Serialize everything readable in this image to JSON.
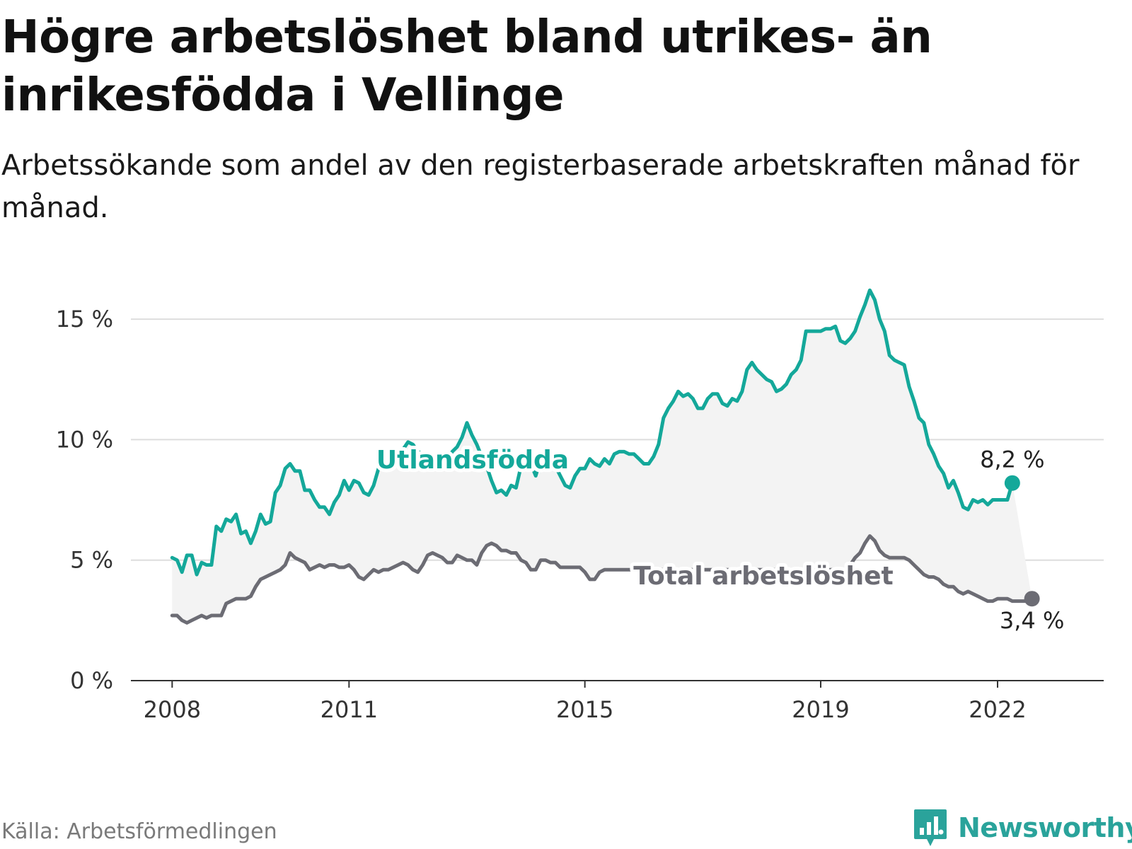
{
  "header": {
    "title": "Högre arbetslöshet bland utrikes- än inrikesfödda i Vellinge",
    "subtitle": "Arbetssökande som andel av den registerbaserade arbetskraften månad för månad."
  },
  "footer": {
    "source": "Källa: Arbetsförmedlingen",
    "brand": "Newsworthy"
  },
  "colors": {
    "utlandsfodda": "#14a89a",
    "total": "#6c6c74",
    "band": "#f3f3f3",
    "grid": "#dddddd",
    "axis": "#333333",
    "brand": "#2aa39b"
  },
  "chart_data": {
    "type": "line",
    "title": "Högre arbetslöshet bland utrikes- än inrikesfödda i Vellinge",
    "ylim": [
      0,
      16.5
    ],
    "xlim": [
      2007.3,
      2023.8
    ],
    "yticks": [
      {
        "value": 0,
        "label": "0 %"
      },
      {
        "value": 5,
        "label": "5 %"
      },
      {
        "value": 10,
        "label": "10 %"
      },
      {
        "value": 15,
        "label": "15 %"
      }
    ],
    "xticks": [
      {
        "value": 2008,
        "label": "2008"
      },
      {
        "value": 2011,
        "label": "2011"
      },
      {
        "value": 2015,
        "label": "2015"
      },
      {
        "value": 2019,
        "label": "2019"
      },
      {
        "value": 2022,
        "label": "2022"
      }
    ],
    "series": [
      {
        "name": "Utlandsfödda",
        "label": "Utlandsfödda",
        "end_label": "8,2 %",
        "start": 2008.0,
        "step": 0.0833333,
        "values": [
          5.1,
          5.0,
          4.5,
          5.2,
          5.2,
          4.4,
          4.9,
          4.8,
          4.8,
          6.4,
          6.2,
          6.7,
          6.6,
          6.9,
          6.1,
          6.2,
          5.7,
          6.2,
          6.9,
          6.5,
          6.6,
          7.8,
          8.1,
          8.8,
          9.0,
          8.7,
          8.7,
          7.9,
          7.9,
          7.5,
          7.2,
          7.2,
          6.9,
          7.4,
          7.7,
          8.3,
          7.9,
          8.3,
          8.2,
          7.8,
          7.7,
          8.1,
          8.8,
          9.3,
          9.1,
          9.3,
          9.5,
          9.6,
          9.9,
          9.8,
          9.5,
          9.4,
          9.3,
          9.0,
          8.8,
          8.9,
          9.2,
          9.5,
          9.7,
          10.1,
          10.7,
          10.2,
          9.8,
          9.3,
          8.9,
          8.3,
          7.8,
          7.9,
          7.7,
          8.1,
          8.0,
          8.9,
          8.9,
          9.0,
          8.5,
          9.2,
          8.9,
          9.1,
          8.9,
          8.5,
          8.1,
          8.0,
          8.5,
          8.8,
          8.8,
          9.2,
          9.0,
          8.9,
          9.2,
          9.0,
          9.4,
          9.5,
          9.5,
          9.4,
          9.4,
          9.2,
          9.0,
          9.0,
          9.3,
          9.8,
          10.9,
          11.3,
          11.6,
          12.0,
          11.8,
          11.9,
          11.7,
          11.3,
          11.3,
          11.7,
          11.9,
          11.9,
          11.5,
          11.4,
          11.7,
          11.6,
          12.0,
          12.9,
          13.2,
          12.9,
          12.7,
          12.5,
          12.4,
          12.0,
          12.1,
          12.3,
          12.7,
          12.9,
          13.3,
          14.5,
          14.5,
          14.5,
          14.5,
          14.6,
          14.6,
          14.7,
          14.1,
          14.0,
          14.2,
          14.5,
          15.1,
          15.6,
          16.2,
          15.8,
          15.0,
          14.5,
          13.5,
          13.3,
          13.2,
          13.1,
          12.2,
          11.6,
          10.9,
          10.7,
          9.8,
          9.4,
          8.9,
          8.6,
          8.0,
          8.3,
          7.8,
          7.2,
          7.1,
          7.5,
          7.4,
          7.5,
          7.3,
          7.5,
          7.5,
          7.5,
          7.5,
          8.2
        ],
        "color": "#14a89a"
      },
      {
        "name": "Total arbetslöshet",
        "label": "Total arbetslöshet",
        "end_label": "3,4 %",
        "start": 2008.0,
        "step": 0.0833333,
        "values": [
          2.7,
          2.7,
          2.5,
          2.4,
          2.5,
          2.6,
          2.7,
          2.6,
          2.7,
          2.7,
          2.7,
          3.2,
          3.3,
          3.4,
          3.4,
          3.4,
          3.5,
          3.9,
          4.2,
          4.3,
          4.4,
          4.5,
          4.6,
          4.8,
          5.3,
          5.1,
          5.0,
          4.9,
          4.6,
          4.7,
          4.8,
          4.7,
          4.8,
          4.8,
          4.7,
          4.7,
          4.8,
          4.6,
          4.3,
          4.2,
          4.4,
          4.6,
          4.5,
          4.6,
          4.6,
          4.7,
          4.8,
          4.9,
          4.8,
          4.6,
          4.5,
          4.8,
          5.2,
          5.3,
          5.2,
          5.1,
          4.9,
          4.9,
          5.2,
          5.1,
          5.0,
          5.0,
          4.8,
          5.3,
          5.6,
          5.7,
          5.6,
          5.4,
          5.4,
          5.3,
          5.3,
          5.0,
          4.9,
          4.6,
          4.6,
          5.0,
          5.0,
          4.9,
          4.9,
          4.7,
          4.7,
          4.7,
          4.7,
          4.7,
          4.5,
          4.2,
          4.2,
          4.5,
          4.6,
          4.6,
          4.6,
          4.6,
          4.6,
          4.6,
          4.6,
          4.6,
          4.6,
          4.6,
          4.6,
          4.6,
          4.6,
          4.6,
          4.6,
          4.6,
          4.6,
          4.6,
          4.6,
          4.6,
          4.6,
          4.6,
          4.6,
          4.6,
          4.6,
          4.6,
          4.6,
          4.6,
          4.6,
          4.6,
          4.6,
          4.6,
          4.6,
          4.6,
          4.6,
          4.6,
          4.6,
          4.6,
          4.6,
          4.6,
          4.6,
          4.6,
          4.6,
          4.6,
          4.6,
          4.6,
          4.6,
          4.6,
          4.6,
          4.6,
          4.8,
          5.1,
          5.3,
          5.7,
          6.0,
          5.8,
          5.4,
          5.2,
          5.1,
          5.1,
          5.1,
          5.1,
          5.0,
          4.8,
          4.6,
          4.4,
          4.3,
          4.3,
          4.2,
          4.0,
          3.9,
          3.9,
          3.7,
          3.6,
          3.7,
          3.6,
          3.5,
          3.4,
          3.3,
          3.3,
          3.4,
          3.4,
          3.4,
          3.3,
          3.3,
          3.3,
          3.3,
          3.4
        ],
        "color": "#6c6c74"
      }
    ]
  }
}
